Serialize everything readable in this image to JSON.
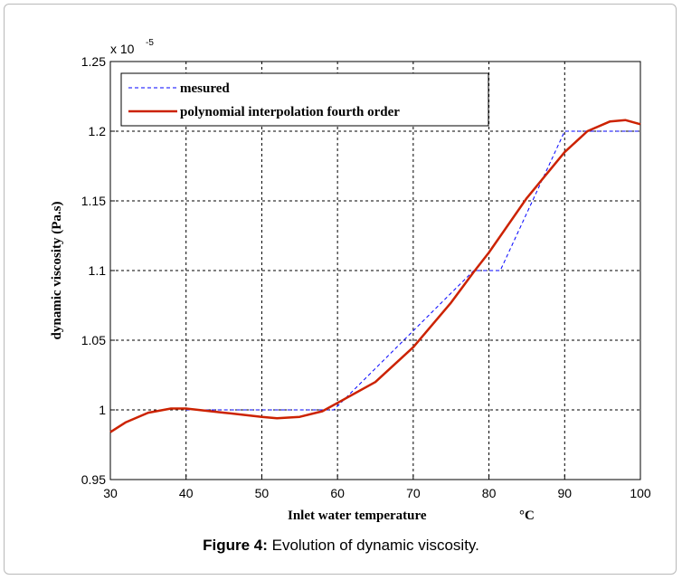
{
  "chart_data": {
    "type": "line",
    "xlabel": "Inlet water temperature",
    "xunit": "°C",
    "ylabel": "dynamic viscosity  (Pa.s)",
    "y_exponent_base": "x 10",
    "y_exponent_power": "-5",
    "xlim": [
      30,
      100
    ],
    "ylim": [
      0.95,
      1.25
    ],
    "xticks": [
      30,
      40,
      50,
      60,
      70,
      80,
      90,
      100
    ],
    "xtick_labels": [
      "30",
      "40",
      "50",
      "60",
      "70",
      "80",
      "90",
      "100"
    ],
    "yticks": [
      0.95,
      1.0,
      1.05,
      1.1,
      1.15,
      1.2,
      1.25
    ],
    "ytick_labels": [
      "0.95",
      "1",
      "1.05",
      "1.1",
      "1.15",
      "1.2",
      "1.25"
    ],
    "grid": true,
    "legend_position": "top-left",
    "series": [
      {
        "name": "mesured",
        "style": "dashed",
        "color": "#0000ff",
        "x": [
          40,
          59.5,
          78,
          81.5,
          90,
          100
        ],
        "y": [
          1.0,
          1.0,
          1.1,
          1.1,
          1.2,
          1.2
        ]
      },
      {
        "name": "polynomial interpolation fourth order",
        "style": "solid",
        "color": "#cc2200",
        "x": [
          30,
          32,
          35,
          38,
          40,
          45,
          50,
          52,
          55,
          58,
          60,
          65,
          70,
          75,
          78,
          80,
          85,
          90,
          93,
          96,
          98,
          100
        ],
        "y": [
          0.984,
          0.991,
          0.998,
          1.001,
          1.001,
          0.998,
          0.995,
          0.994,
          0.995,
          0.999,
          1.005,
          1.02,
          1.045,
          1.077,
          1.099,
          1.113,
          1.152,
          1.185,
          1.2,
          1.207,
          1.208,
          1.205
        ]
      }
    ]
  },
  "caption": {
    "label": "Figure 4:",
    "text": " Evolution of dynamic viscosity."
  }
}
